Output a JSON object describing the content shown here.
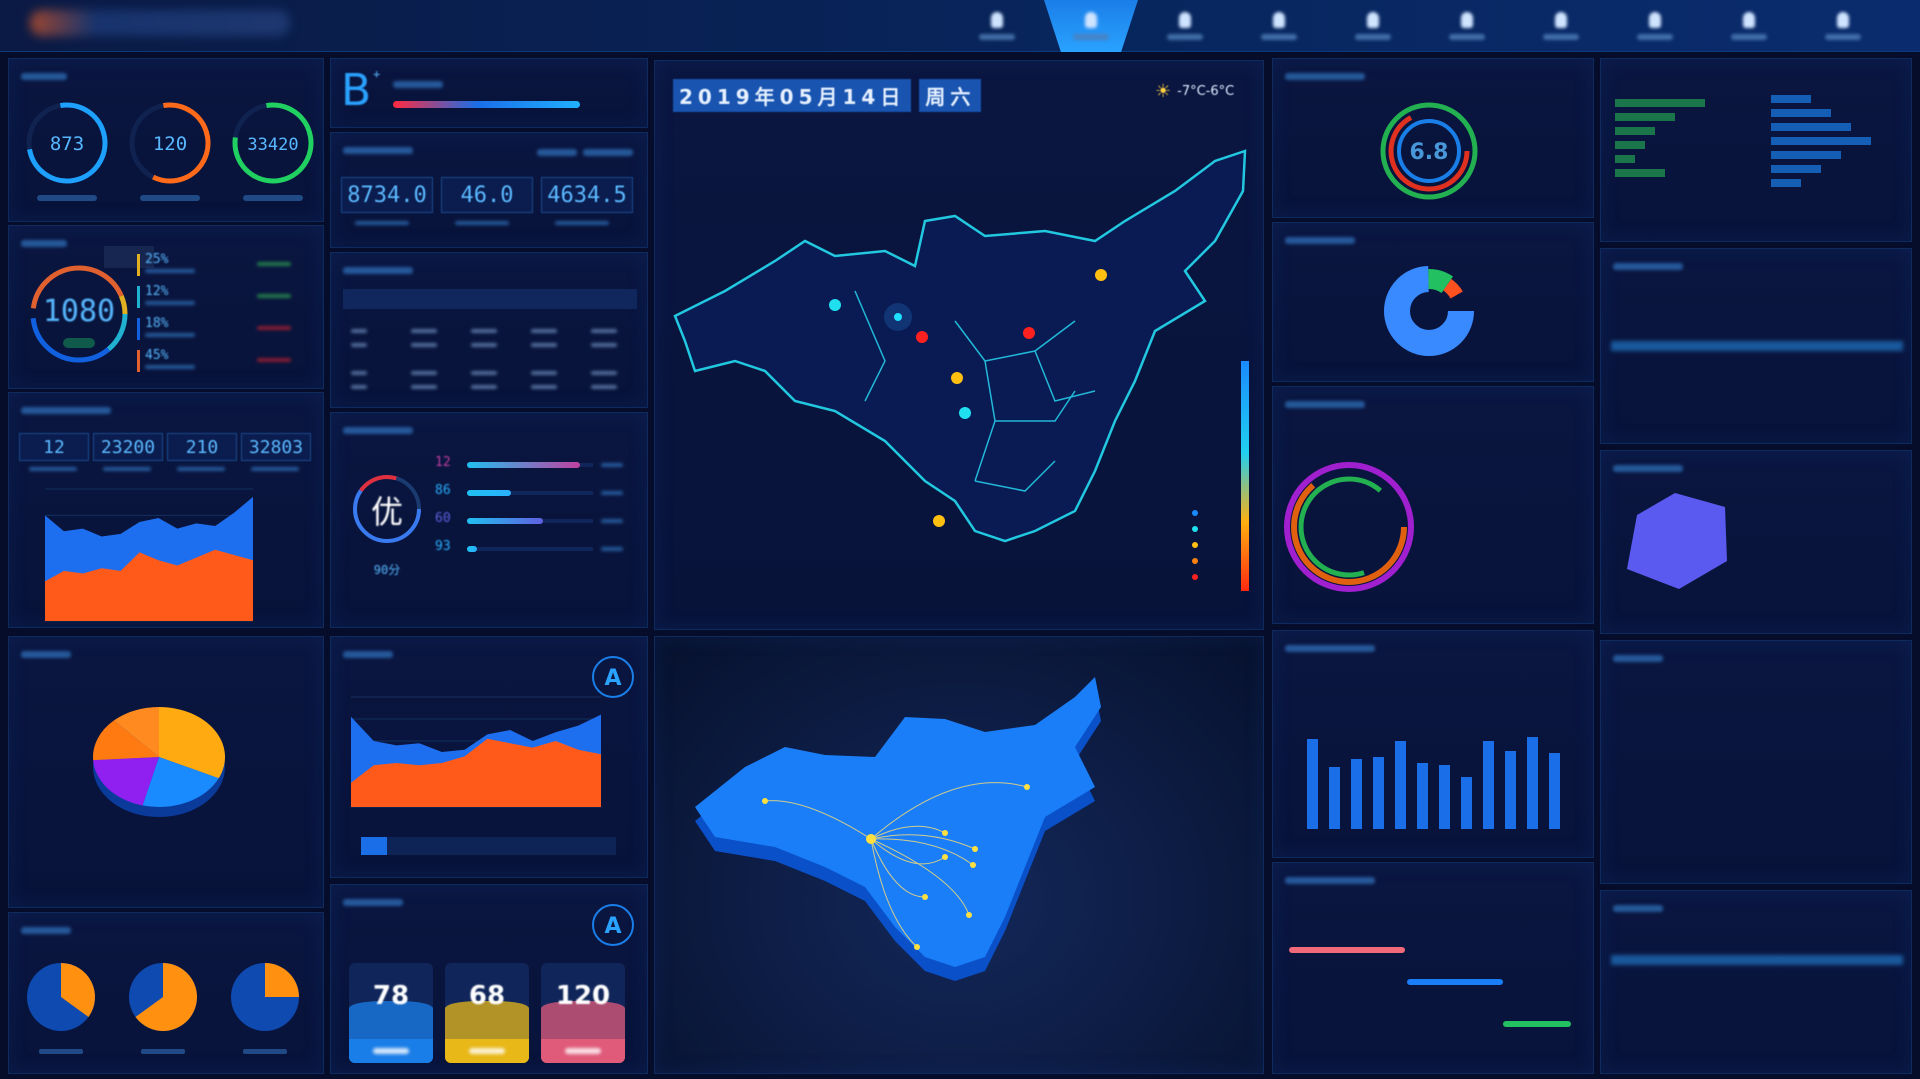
{
  "colors": {
    "accent": "#2aa2ff",
    "background": "#050d2a",
    "orange": "#ff7a1a",
    "green": "#22d06a",
    "red": "#ff3030"
  },
  "nav": {
    "items": [
      {
        "icon": "user-icon"
      },
      {
        "icon": "flame-icon",
        "active": true
      },
      {
        "icon": "monitor-icon"
      },
      {
        "icon": "document-icon"
      },
      {
        "icon": "user-icon"
      },
      {
        "icon": "drop-icon"
      },
      {
        "icon": "home-icon"
      },
      {
        "icon": "chart-icon"
      },
      {
        "icon": "user-icon"
      },
      {
        "icon": "settings-icon"
      }
    ]
  },
  "gauges": [
    {
      "value": "873",
      "color": "#1ea0ff",
      "fraction": 0.75
    },
    {
      "value": "120",
      "color": "#ff6a1a",
      "fraction": 0.6
    },
    {
      "value": "33420",
      "color": "#20d060",
      "fraction": 0.8
    }
  ],
  "cost": {
    "value": "1080",
    "items": [
      {
        "pct": "25%",
        "color": "#e0b020"
      },
      {
        "pct": "12%",
        "color": "#20b0d0"
      },
      {
        "pct": "18%",
        "color": "#1060e0"
      },
      {
        "pct": "45%",
        "color": "#e06030"
      }
    ]
  },
  "grade": {
    "letter": "B",
    "sup": "+",
    "fraction": 0.85
  },
  "energy": {
    "values": [
      "8734.0",
      "46.0",
      "4634.5"
    ]
  },
  "stats4": {
    "values": [
      "12",
      "23200",
      "210",
      "32803"
    ]
  },
  "evaluation": {
    "grade": "优",
    "score": "90分",
    "bars": [
      {
        "value": "12",
        "fraction": 0.9,
        "color": "#c040a0"
      },
      {
        "value": "86",
        "fraction": 0.35,
        "color": "#2ab0ff"
      },
      {
        "value": "60",
        "fraction": 0.6,
        "color": "#6060e0"
      },
      {
        "value": "93",
        "fraction": 0.08,
        "color": "#2ab0ff"
      }
    ]
  },
  "cards": [
    {
      "value": "78",
      "color": "#1a7ee8"
    },
    {
      "value": "68",
      "color": "#e8b818"
    },
    {
      "value": "120",
      "color": "#e05a7a"
    }
  ],
  "map": {
    "date": "2019年05月14日",
    "weekday": "周六",
    "weather": "-7°C-6°C",
    "weather_icon": "partly-cloudy-icon"
  },
  "chart_data": [
    {
      "type": "area",
      "series": [
        {
          "color": "#1e6ff0",
          "values": [
            80,
            68,
            70,
            64,
            66,
            75,
            78,
            70,
            74,
            72,
            82,
            94
          ]
        },
        {
          "color": "#ff5a1a",
          "values": [
            30,
            38,
            36,
            40,
            38,
            52,
            46,
            42,
            48,
            54,
            50,
            46
          ]
        }
      ],
      "ylim": [
        0,
        100
      ]
    },
    {
      "type": "area",
      "series": [
        {
          "color": "#1e6ff0",
          "values": [
            82,
            60,
            56,
            58,
            50,
            52,
            66,
            70,
            60,
            68,
            74,
            84
          ]
        },
        {
          "color": "#ff5a1a",
          "values": [
            22,
            38,
            40,
            38,
            40,
            46,
            62,
            58,
            54,
            60,
            52,
            48
          ]
        }
      ],
      "ylim": [
        0,
        100
      ]
    },
    {
      "type": "pie",
      "values": [
        32,
        22,
        20,
        14,
        12
      ],
      "colors": [
        "#ffaa10",
        "#1a8aff",
        "#9020f0",
        "#ff7a10",
        "#ff8a20"
      ]
    },
    {
      "type": "bar",
      "values": [
        90,
        62,
        70,
        72,
        88,
        66,
        64,
        52,
        88,
        78,
        92,
        76
      ],
      "color": "#1a6ee8",
      "ylim": [
        0,
        140
      ]
    }
  ]
}
